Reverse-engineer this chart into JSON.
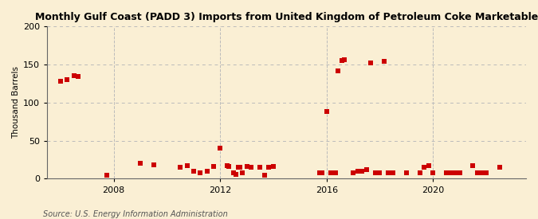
{
  "title": "Monthly Gulf Coast (PADD 3) Imports from United Kingdom of Petroleum Coke Marketable",
  "ylabel": "Thousand Barrels",
  "source": "Source: U.S. Energy Information Administration",
  "background_color": "#faefd4",
  "marker_color": "#cc0000",
  "ylim": [
    0,
    200
  ],
  "yticks": [
    0,
    50,
    100,
    150,
    200
  ],
  "data_points": [
    [
      2006.0,
      128
    ],
    [
      2006.25,
      130
    ],
    [
      2006.5,
      135
    ],
    [
      2006.67,
      134
    ],
    [
      2007.75,
      5
    ],
    [
      2009.0,
      20
    ],
    [
      2009.5,
      18
    ],
    [
      2010.5,
      15
    ],
    [
      2010.75,
      17
    ],
    [
      2011.0,
      10
    ],
    [
      2011.25,
      8
    ],
    [
      2011.5,
      10
    ],
    [
      2011.75,
      16
    ],
    [
      2012.0,
      40
    ],
    [
      2012.25,
      17
    ],
    [
      2012.33,
      16
    ],
    [
      2012.5,
      8
    ],
    [
      2012.58,
      6
    ],
    [
      2012.67,
      15
    ],
    [
      2012.75,
      15
    ],
    [
      2012.83,
      8
    ],
    [
      2013.0,
      16
    ],
    [
      2013.17,
      15
    ],
    [
      2013.5,
      15
    ],
    [
      2013.67,
      5
    ],
    [
      2013.83,
      15
    ],
    [
      2014.0,
      16
    ],
    [
      2015.75,
      8
    ],
    [
      2015.83,
      8
    ],
    [
      2016.0,
      88
    ],
    [
      2016.17,
      8
    ],
    [
      2016.33,
      8
    ],
    [
      2016.42,
      142
    ],
    [
      2016.58,
      155
    ],
    [
      2016.67,
      156
    ],
    [
      2017.0,
      8
    ],
    [
      2017.17,
      10
    ],
    [
      2017.33,
      10
    ],
    [
      2017.5,
      12
    ],
    [
      2017.67,
      152
    ],
    [
      2017.83,
      8
    ],
    [
      2018.0,
      8
    ],
    [
      2018.17,
      154
    ],
    [
      2018.33,
      8
    ],
    [
      2018.5,
      8
    ],
    [
      2019.0,
      8
    ],
    [
      2019.5,
      8
    ],
    [
      2019.67,
      15
    ],
    [
      2019.83,
      17
    ],
    [
      2020.0,
      8
    ],
    [
      2020.5,
      8
    ],
    [
      2020.67,
      8
    ],
    [
      2020.83,
      8
    ],
    [
      2021.0,
      8
    ],
    [
      2021.5,
      17
    ],
    [
      2021.67,
      8
    ],
    [
      2021.83,
      8
    ],
    [
      2022.0,
      8
    ],
    [
      2022.5,
      15
    ]
  ],
  "xticks": [
    2008,
    2012,
    2016,
    2020
  ],
  "xlim": [
    2005.5,
    2023.5
  ]
}
